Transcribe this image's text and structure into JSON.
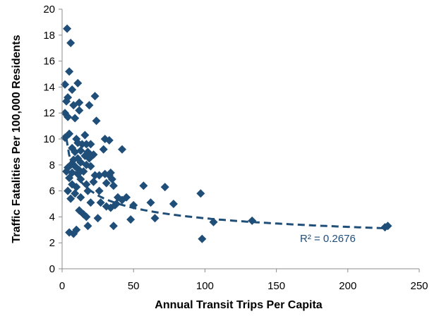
{
  "chart_data": {
    "type": "scatter",
    "title": "",
    "xlabel": "Annual Transit Trips Per Capita",
    "ylabel": "Traffic Fatalities Per 100,000 Residents",
    "xlim": [
      0,
      250
    ],
    "ylim": [
      0,
      20
    ],
    "x_ticks": [
      "0",
      "50",
      "100",
      "150",
      "200",
      "250"
    ],
    "y_ticks": [
      "0",
      "2",
      "4",
      "6",
      "8",
      "10",
      "12",
      "14",
      "16",
      "18",
      "20"
    ],
    "grid": false,
    "legend": "none",
    "marker": "diamond",
    "colors": {
      "points": "#1F4E79",
      "trendline": "#1F4E79",
      "annotation": "#1F4E79"
    },
    "series": [
      {
        "points": [
          [
            3.5,
            18.5
          ],
          [
            6,
            17.4
          ],
          [
            5,
            15.2
          ],
          [
            11,
            14.3
          ],
          [
            2,
            14.2
          ],
          [
            7,
            13.8
          ],
          [
            4,
            13.2
          ],
          [
            12,
            12.8
          ],
          [
            23,
            13.3
          ],
          [
            8,
            12.6
          ],
          [
            3,
            12.9
          ],
          [
            19,
            12.6
          ],
          [
            2,
            12.0
          ],
          [
            12,
            12.2
          ],
          [
            4,
            11.7
          ],
          [
            9,
            11.6
          ],
          [
            24,
            11.4
          ],
          [
            5,
            10.4
          ],
          [
            2,
            10.1
          ],
          [
            10,
            10.0
          ],
          [
            16,
            10.3
          ],
          [
            30,
            10.0
          ],
          [
            33,
            9.9
          ],
          [
            7,
            9.3
          ],
          [
            11,
            9.7
          ],
          [
            14,
            9.6
          ],
          [
            17,
            9.6
          ],
          [
            20,
            9.6
          ],
          [
            29,
            9.2
          ],
          [
            42,
            9.2
          ],
          [
            9,
            9.0
          ],
          [
            13,
            9.1
          ],
          [
            18,
            9.0
          ],
          [
            22,
            8.8
          ],
          [
            16,
            8.7
          ],
          [
            8,
            8.4
          ],
          [
            11,
            8.5
          ],
          [
            19,
            8.5
          ],
          [
            6,
            8.0
          ],
          [
            13,
            8.2
          ],
          [
            17,
            8.0
          ],
          [
            20,
            7.9
          ],
          [
            4,
            7.8
          ],
          [
            9,
            7.9
          ],
          [
            12,
            7.6
          ],
          [
            15,
            7.5
          ],
          [
            3,
            7.5
          ],
          [
            7,
            7.4
          ],
          [
            11,
            7.3
          ],
          [
            23,
            7.2
          ],
          [
            26,
            7.2
          ],
          [
            30,
            7.3
          ],
          [
            33,
            7.2
          ],
          [
            34,
            7.4
          ],
          [
            5,
            7.0
          ],
          [
            13,
            6.9
          ],
          [
            22,
            6.7
          ],
          [
            31,
            6.6
          ],
          [
            35,
            6.9
          ],
          [
            7,
            6.5
          ],
          [
            10,
            6.3
          ],
          [
            17,
            6.5
          ],
          [
            36,
            6.4
          ],
          [
            57,
            6.4
          ],
          [
            72,
            6.3
          ],
          [
            4,
            6.0
          ],
          [
            9,
            5.8
          ],
          [
            18,
            6.0
          ],
          [
            26,
            6.0
          ],
          [
            97,
            5.8
          ],
          [
            6,
            5.4
          ],
          [
            13,
            5.5
          ],
          [
            39,
            5.5
          ],
          [
            42,
            5.3
          ],
          [
            45,
            5.5
          ],
          [
            62,
            5.1
          ],
          [
            20,
            5.1
          ],
          [
            27,
            5.1
          ],
          [
            38,
            5.0
          ],
          [
            50,
            4.9
          ],
          [
            78,
            5.0
          ],
          [
            12,
            4.5
          ],
          [
            15,
            4.2
          ],
          [
            31,
            4.8
          ],
          [
            34,
            4.7
          ],
          [
            37,
            4.9
          ],
          [
            17,
            4.0
          ],
          [
            25,
            3.9
          ],
          [
            48,
            3.8
          ],
          [
            65,
            3.9
          ],
          [
            106,
            3.6
          ],
          [
            133,
            3.7
          ],
          [
            18,
            3.3
          ],
          [
            36,
            3.3
          ],
          [
            228,
            3.3
          ],
          [
            226,
            3.2
          ],
          [
            5,
            2.8
          ],
          [
            8,
            2.7
          ],
          [
            10,
            3.0
          ],
          [
            98,
            2.3
          ]
        ]
      }
    ],
    "trendline": {
      "type": "power",
      "style": "dashed",
      "x_range": [
        3,
        228
      ],
      "fit": {
        "a": 13.5,
        "b": -0.27
      },
      "r_squared_label": "R² = 0.2676"
    }
  }
}
